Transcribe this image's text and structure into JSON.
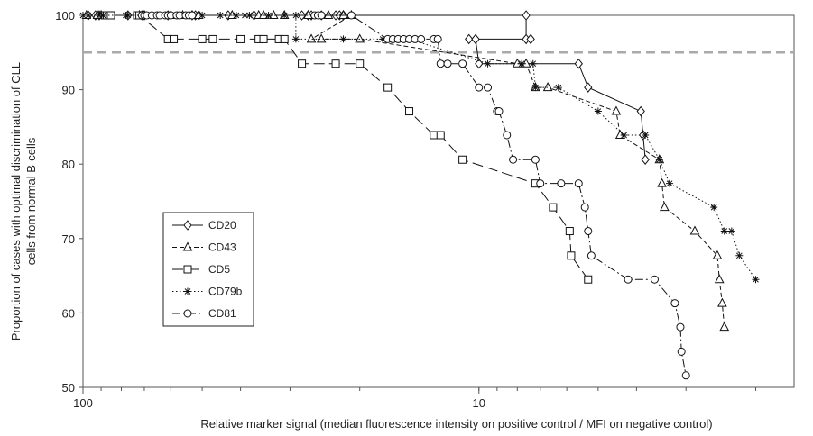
{
  "chart_data": {
    "type": "line",
    "title": "",
    "xlabel": "Relative marker signal (median fluorescence intensity on positive control /  MFI on negative control)",
    "ylabel_lines": [
      "Proportion of cases with optimal discrimination of CLL",
      "cells from normal B-cells"
    ],
    "x_scale": "log",
    "x_reversed": true,
    "xlim": [
      100,
      1.6
    ],
    "ylim": [
      50,
      100
    ],
    "x_ticks": [
      100,
      10
    ],
    "y_ticks": [
      50,
      60,
      70,
      80,
      90,
      100
    ],
    "reference_line": {
      "y": 95,
      "color": "#aaaaaa",
      "style": "dashed"
    },
    "grid": false,
    "legend_position": "left-center",
    "series": [
      {
        "name": "CD20",
        "marker": "diamond",
        "dash": "solid",
        "x": [
          100,
          98,
          97,
          96,
          95,
          94,
          93,
          92,
          91,
          90,
          89,
          88,
          86,
          80,
          75,
          70,
          65,
          60,
          55,
          50,
          45,
          40,
          35,
          33,
          31,
          29,
          28,
          7.5,
          7.5,
          10.8,
          10.7,
          10.5,
          4.5,
          4.4,
          4.1
        ],
        "y": [
          100,
          100,
          100,
          100,
          100,
          100,
          100,
          100,
          100,
          100,
          100,
          100,
          100,
          100,
          100,
          100,
          100,
          100,
          100,
          100,
          100,
          100,
          100,
          100,
          100,
          100,
          100,
          100,
          96.8,
          96.8,
          93.5,
          93.5,
          93.5,
          90.3,
          87.1
        ],
        "x_override": [
          100,
          96,
          92,
          89,
          86,
          84,
          80,
          75,
          70,
          65,
          60,
          55,
          50,
          46,
          40,
          38,
          36,
          34,
          33,
          32,
          31,
          30,
          29,
          27,
          26,
          7.7,
          7.6,
          7.3,
          10.8,
          10.5,
          4.5,
          4.4,
          4.1,
          4.05,
          4.0
        ],
        "points": [
          [
            97,
            100
          ],
          [
            93,
            100
          ],
          [
            91,
            100
          ],
          [
            77,
            100
          ],
          [
            71,
            100
          ],
          [
            70,
            100
          ],
          [
            61,
            100
          ],
          [
            53,
            100
          ],
          [
            52,
            100
          ],
          [
            51,
            100
          ],
          [
            43,
            100
          ],
          [
            37,
            100
          ],
          [
            28,
            100
          ],
          [
            27,
            100
          ],
          [
            26.5,
            100
          ],
          [
            25,
            100
          ],
          [
            23,
            100
          ],
          [
            22.5,
            100
          ],
          [
            22,
            100
          ],
          [
            7.6,
            100
          ],
          [
            7.6,
            96.8
          ],
          [
            7.4,
            96.8
          ],
          [
            10.6,
            96.8
          ],
          [
            10.2,
            96.8
          ],
          [
            10.0,
            93.5
          ],
          [
            5.6,
            93.5
          ],
          [
            5.3,
            90.3
          ],
          [
            3.9,
            87.1
          ],
          [
            3.85,
            83.9
          ],
          [
            3.8,
            80.6
          ]
        ]
      },
      {
        "name": "CD43",
        "marker": "triangle",
        "dash": "dashed",
        "points": [
          [
            98,
            100
          ],
          [
            92,
            100
          ],
          [
            90,
            100
          ],
          [
            72,
            100
          ],
          [
            70,
            100
          ],
          [
            60,
            100
          ],
          [
            56,
            100
          ],
          [
            53,
            100
          ],
          [
            51,
            100
          ],
          [
            42,
            100
          ],
          [
            36,
            100
          ],
          [
            35,
            100
          ],
          [
            33,
            100
          ],
          [
            31,
            100
          ],
          [
            27,
            100
          ],
          [
            24,
            100
          ],
          [
            22,
            100
          ],
          [
            21,
            100
          ],
          [
            26.5,
            96.8
          ],
          [
            25,
            96.8
          ],
          [
            20,
            96.8
          ],
          [
            8,
            93.5
          ],
          [
            7.6,
            93.5
          ],
          [
            7.2,
            90.3
          ],
          [
            6.7,
            90.3
          ],
          [
            4.5,
            87.1
          ],
          [
            4.4,
            83.9
          ],
          [
            3.5,
            80.6
          ],
          [
            3.45,
            77.4
          ],
          [
            3.4,
            74.2
          ],
          [
            2.85,
            71.0
          ],
          [
            2.5,
            67.7
          ],
          [
            2.47,
            64.5
          ],
          [
            2.43,
            61.3
          ],
          [
            2.4,
            58.1
          ]
        ]
      },
      {
        "name": "CD5",
        "marker": "square",
        "dash": "longdash",
        "points": [
          [
            88,
            100
          ],
          [
            87,
            100
          ],
          [
            85,
            100
          ],
          [
            73,
            100
          ],
          [
            72,
            100
          ],
          [
            61,
            96.8
          ],
          [
            59,
            96.8
          ],
          [
            50,
            96.8
          ],
          [
            47,
            96.8
          ],
          [
            40,
            96.8
          ],
          [
            36,
            96.8
          ],
          [
            35,
            96.8
          ],
          [
            32,
            96.8
          ],
          [
            31,
            96.8
          ],
          [
            28,
            93.5
          ],
          [
            23,
            93.5
          ],
          [
            20,
            93.5
          ],
          [
            17,
            90.3
          ],
          [
            15,
            87.1
          ],
          [
            13,
            83.9
          ],
          [
            12.5,
            83.9
          ],
          [
            11,
            80.6
          ],
          [
            7.2,
            77.4
          ],
          [
            6.5,
            74.2
          ],
          [
            5.9,
            71.0
          ],
          [
            5.85,
            67.7
          ],
          [
            5.3,
            64.5
          ]
        ]
      },
      {
        "name": "CD79b",
        "marker": "asterisk",
        "dash": "dotted",
        "points": [
          [
            100,
            100
          ],
          [
            97,
            100
          ],
          [
            91,
            100
          ],
          [
            89,
            100
          ],
          [
            78,
            100
          ],
          [
            77,
            100
          ],
          [
            69,
            100
          ],
          [
            65,
            100
          ],
          [
            60,
            100
          ],
          [
            57,
            100
          ],
          [
            50,
            100
          ],
          [
            45,
            100
          ],
          [
            41,
            100
          ],
          [
            39,
            100
          ],
          [
            38,
            100
          ],
          [
            34,
            100
          ],
          [
            31,
            100
          ],
          [
            29,
            100
          ],
          [
            29,
            96.8
          ],
          [
            22,
            96.8
          ],
          [
            17.5,
            96.8
          ],
          [
            15,
            96.8
          ],
          [
            9.5,
            93.5
          ],
          [
            7.8,
            93.5
          ],
          [
            7.3,
            93.5
          ],
          [
            7.2,
            90.3
          ],
          [
            6.3,
            90.3
          ],
          [
            5.0,
            87.1
          ],
          [
            4.3,
            83.9
          ],
          [
            3.8,
            83.9
          ],
          [
            3.5,
            80.6
          ],
          [
            3.3,
            77.4
          ],
          [
            2.55,
            74.2
          ],
          [
            2.4,
            71.0
          ],
          [
            2.3,
            71.0
          ],
          [
            2.2,
            67.7
          ],
          [
            2.0,
            64.5
          ]
        ]
      },
      {
        "name": "CD81",
        "marker": "circle",
        "dash": "dashdot",
        "points": [
          [
            71,
            100
          ],
          [
            70,
            100
          ],
          [
            69,
            100
          ],
          [
            67,
            100
          ],
          [
            65,
            100
          ],
          [
            64,
            100
          ],
          [
            62,
            100
          ],
          [
            61,
            100
          ],
          [
            60,
            100
          ],
          [
            58,
            100
          ],
          [
            57,
            100
          ],
          [
            55,
            100
          ],
          [
            54,
            100
          ],
          [
            53,
            100
          ],
          [
            26,
            100
          ],
          [
            25.5,
            100
          ],
          [
            25,
            100
          ],
          [
            21,
            100
          ],
          [
            17,
            96.8
          ],
          [
            16.5,
            96.8
          ],
          [
            16,
            96.8
          ],
          [
            15.5,
            96.8
          ],
          [
            15,
            96.8
          ],
          [
            14.5,
            96.8
          ],
          [
            14,
            96.8
          ],
          [
            13,
            96.8
          ],
          [
            12.7,
            96.8
          ],
          [
            12.5,
            93.5
          ],
          [
            12,
            93.5
          ],
          [
            11,
            93.5
          ],
          [
            10,
            90.3
          ],
          [
            9.5,
            90.3
          ],
          [
            9.0,
            87.1
          ],
          [
            8.9,
            87.1
          ],
          [
            8.5,
            83.9
          ],
          [
            8.2,
            80.6
          ],
          [
            7.2,
            80.6
          ],
          [
            7.0,
            77.4
          ],
          [
            6.2,
            77.4
          ],
          [
            5.6,
            77.4
          ],
          [
            5.4,
            74.2
          ],
          [
            5.3,
            71.0
          ],
          [
            5.2,
            67.7
          ],
          [
            4.2,
            64.5
          ],
          [
            3.6,
            64.5
          ],
          [
            3.2,
            61.3
          ],
          [
            3.1,
            58.1
          ],
          [
            3.08,
            54.8
          ],
          [
            3.0,
            51.6
          ]
        ]
      }
    ]
  },
  "legend": {
    "items": [
      "CD20",
      "CD43",
      "CD5",
      "CD79b",
      "CD81"
    ]
  }
}
